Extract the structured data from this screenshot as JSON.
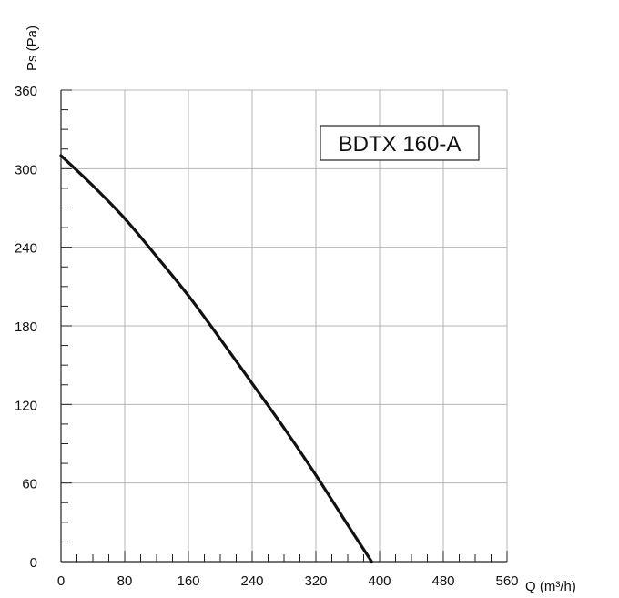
{
  "chart_data": {
    "type": "line",
    "title": "",
    "model_label": "BDTX 160-A",
    "xlabel": "Q (m³/h)",
    "ylabel": "Ps (Pa)",
    "xlim": [
      0,
      560
    ],
    "ylim": [
      0,
      360
    ],
    "x_ticks": [
      0,
      80,
      160,
      240,
      320,
      400,
      480,
      560
    ],
    "y_ticks": [
      0,
      60,
      120,
      180,
      240,
      300,
      360
    ],
    "x_tick_labels": [
      "0",
      "80",
      "160",
      "240",
      "320",
      "400",
      "480",
      "560"
    ],
    "y_tick_labels": [
      "0",
      "60",
      "120",
      "180",
      "240",
      "300",
      "360"
    ],
    "x_minor_step": 20,
    "y_minor_step": 15,
    "grid": true,
    "series": [
      {
        "x": [
          0,
          40,
          80,
          120,
          160,
          200,
          240,
          280,
          320,
          360,
          390
        ],
        "values": [
          310,
          287,
          262,
          233,
          203,
          170,
          136,
          102,
          66,
          28,
          0
        ]
      }
    ],
    "colors": {
      "line": "#111111",
      "grid": "#b4b4b4",
      "axis": "#222222"
    }
  }
}
